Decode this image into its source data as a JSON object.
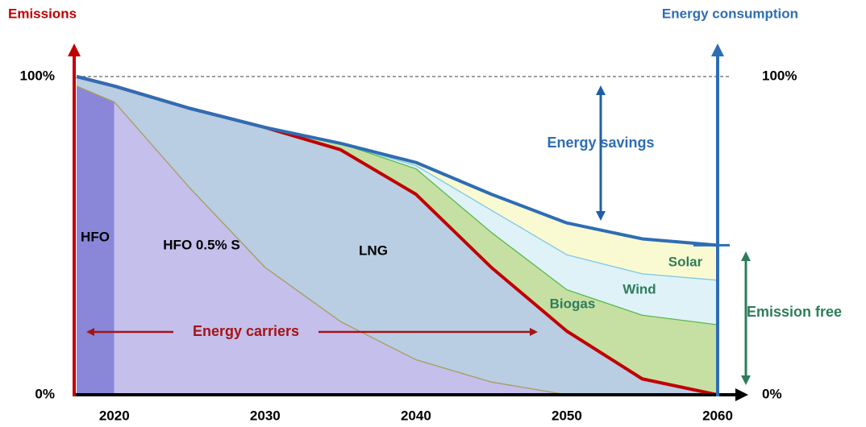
{
  "chart_data": {
    "type": "area",
    "stacked": true,
    "ylabel": "Emissions",
    "y2label": "Energy consumption",
    "x": [
      2017.5,
      2020,
      2020,
      2025,
      2030,
      2035,
      2040,
      2045,
      2050,
      2055,
      2060
    ],
    "xlim": [
      2017.5,
      2060
    ],
    "xticks": [
      2020,
      2030,
      2040,
      2050,
      2060
    ],
    "ylim": [
      0,
      100
    ],
    "yticks": [
      {
        "value": 0,
        "label": "0%"
      },
      {
        "value": 100,
        "label": "100%"
      }
    ],
    "y2lim": [
      0,
      100
    ],
    "y2ticks": [
      {
        "value": 0,
        "label": "0%"
      },
      {
        "value": 100,
        "label": "100%"
      }
    ],
    "series": [
      {
        "name": "HFO",
        "color": "#8a86d8",
        "values": [
          97,
          92,
          0,
          0,
          0,
          0,
          0,
          0,
          0,
          0,
          0
        ]
      },
      {
        "name": "HFO 0.5% S",
        "color": "#c5bfec",
        "edge_color": "#a89c5a",
        "values": [
          0,
          0,
          92,
          65,
          40,
          23,
          11,
          4,
          0,
          0,
          0
        ]
      },
      {
        "name": "LNG",
        "color": "#b9cde3",
        "edge_color": "#c00000",
        "values": [
          3,
          5,
          5,
          25,
          44,
          54,
          52,
          36,
          20,
          5,
          0
        ]
      },
      {
        "name": "Biogas",
        "color": "#c6e0a4",
        "edge_color": "#5cb84a",
        "values": [
          0,
          0,
          0,
          0,
          0,
          2,
          8,
          11,
          13,
          20,
          22
        ]
      },
      {
        "name": "Wind",
        "color": "#dff2f8",
        "edge_color": "#7ec8e3",
        "values": [
          0,
          0,
          0,
          0,
          0,
          0,
          1,
          7,
          11,
          13,
          14
        ]
      },
      {
        "name": "Solar",
        "color": "#fafad2",
        "edge_color": "#2e6db4",
        "values": [
          0,
          0,
          0,
          0,
          0,
          0,
          1,
          5,
          10,
          11,
          11
        ]
      }
    ],
    "annotations": [
      "Energy savings",
      "Energy carriers",
      "Emission free"
    ]
  }
}
